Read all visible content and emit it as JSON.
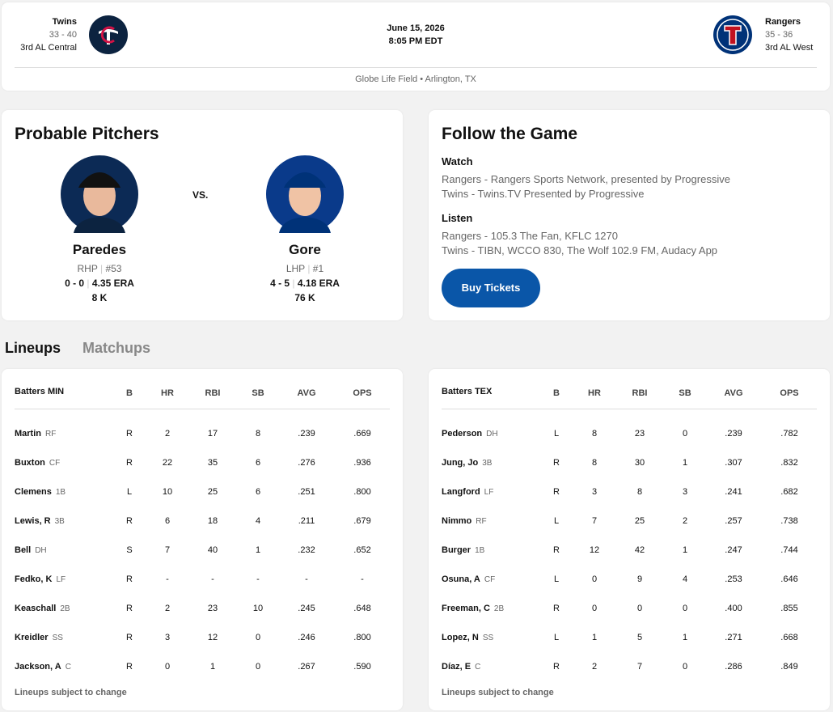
{
  "header": {
    "away": {
      "name": "Twins",
      "record": "33 - 40",
      "standing": "3rd AL Central"
    },
    "date": "June 15, 2026",
    "time": "8:05 PM EDT",
    "home": {
      "name": "Rangers",
      "record": "35 - 36",
      "standing": "3rd AL West"
    },
    "venue": "Globe Life Field • Arlington, TX"
  },
  "pitchers": {
    "title": "Probable Pitchers",
    "vs": "VS.",
    "away": {
      "name": "Paredes",
      "hand": "RHP",
      "number": "#53",
      "record": "0 - 0",
      "era": "4.35 ERA",
      "strikeouts": "8 K"
    },
    "home": {
      "name": "Gore",
      "hand": "LHP",
      "number": "#1",
      "record": "4 - 5",
      "era": "4.18 ERA",
      "strikeouts": "76 K"
    }
  },
  "follow": {
    "title": "Follow the Game",
    "watch_label": "Watch",
    "watch": [
      "Rangers - Rangers Sports Network, presented by Progressive",
      "Twins - Twins.TV Presented by Progressive"
    ],
    "listen_label": "Listen",
    "listen": [
      "Rangers - 105.3 The Fan, KFLC 1270",
      "Twins - TIBN, WCCO 830, The Wolf 102.9 FM, Audacy App"
    ],
    "button": "Buy Tickets"
  },
  "tabs": [
    "Lineups",
    "Matchups"
  ],
  "lineups": [
    {
      "columns": [
        "Batters MIN",
        "B",
        "HR",
        "RBI",
        "SB",
        "AVG",
        "OPS"
      ],
      "rows": [
        [
          "Martin",
          "RF",
          "R",
          "2",
          "17",
          "8",
          ".239",
          ".669"
        ],
        [
          "Buxton",
          "CF",
          "R",
          "22",
          "35",
          "6",
          ".276",
          ".936"
        ],
        [
          "Clemens",
          "1B",
          "L",
          "10",
          "25",
          "6",
          ".251",
          ".800"
        ],
        [
          "Lewis, R",
          "3B",
          "R",
          "6",
          "18",
          "4",
          ".211",
          ".679"
        ],
        [
          "Bell",
          "DH",
          "S",
          "7",
          "40",
          "1",
          ".232",
          ".652"
        ],
        [
          "Fedko, K",
          "LF",
          "R",
          "-",
          "-",
          "-",
          "-",
          "-"
        ],
        [
          "Keaschall",
          "2B",
          "R",
          "2",
          "23",
          "10",
          ".245",
          ".648"
        ],
        [
          "Kreidler",
          "SS",
          "R",
          "3",
          "12",
          "0",
          ".246",
          ".800"
        ],
        [
          "Jackson, A",
          "C",
          "R",
          "0",
          "1",
          "0",
          ".267",
          ".590"
        ]
      ],
      "note": "Lineups subject to change"
    },
    {
      "columns": [
        "Batters TEX",
        "B",
        "HR",
        "RBI",
        "SB",
        "AVG",
        "OPS"
      ],
      "rows": [
        [
          "Pederson",
          "DH",
          "L",
          "8",
          "23",
          "0",
          ".239",
          ".782"
        ],
        [
          "Jung, Jo",
          "3B",
          "R",
          "8",
          "30",
          "1",
          ".307",
          ".832"
        ],
        [
          "Langford",
          "LF",
          "R",
          "3",
          "8",
          "3",
          ".241",
          ".682"
        ],
        [
          "Nimmo",
          "RF",
          "L",
          "7",
          "25",
          "2",
          ".257",
          ".738"
        ],
        [
          "Burger",
          "1B",
          "R",
          "12",
          "42",
          "1",
          ".247",
          ".744"
        ],
        [
          "Osuna, A",
          "CF",
          "L",
          "0",
          "9",
          "4",
          ".253",
          ".646"
        ],
        [
          "Freeman, C",
          "2B",
          "R",
          "0",
          "0",
          "0",
          ".400",
          ".855"
        ],
        [
          "Lopez, N",
          "SS",
          "L",
          "1",
          "5",
          "1",
          ".271",
          ".668"
        ],
        [
          "Díaz, E",
          "C",
          "R",
          "2",
          "7",
          "0",
          ".286",
          ".849"
        ]
      ],
      "note": "Lineups subject to change"
    }
  ]
}
